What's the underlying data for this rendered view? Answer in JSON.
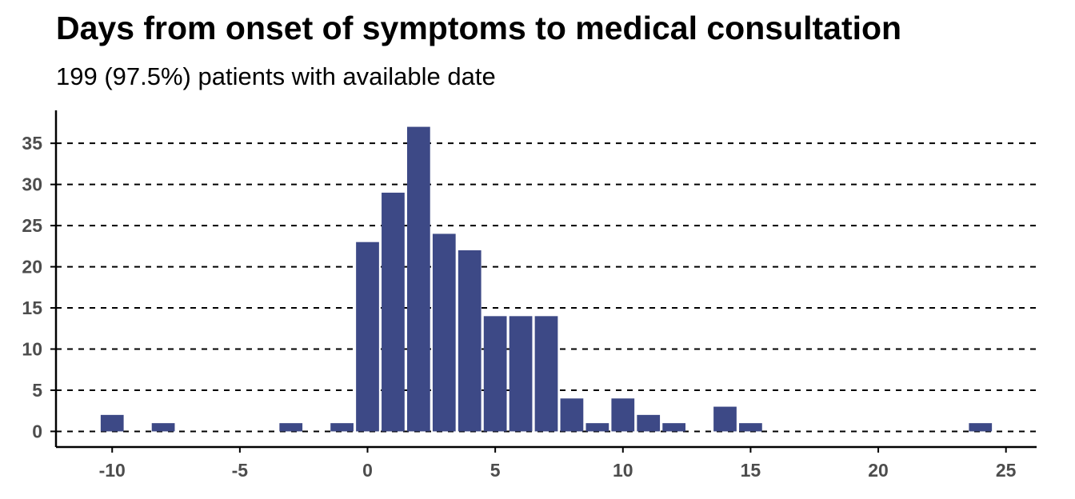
{
  "title": "Days from onset of symptoms to medical consultation",
  "subtitle": "199 (97.5%) patients with available date",
  "colors": {
    "bar": "#3d4986",
    "grid": "#000000",
    "axis": "#000000",
    "tick_text": "#4d4d4d"
  },
  "chart_data": {
    "type": "bar",
    "title": "Days from onset of symptoms to medical consultation",
    "subtitle": "199 (97.5%) patients with available date",
    "xlabel": "",
    "ylabel": "",
    "x": [
      -10,
      -8,
      -3,
      -1,
      0,
      1,
      2,
      3,
      4,
      5,
      6,
      7,
      8,
      9,
      10,
      11,
      12,
      14,
      15,
      24
    ],
    "values": [
      2,
      1,
      1,
      1,
      23,
      29,
      37,
      24,
      22,
      14,
      14,
      14,
      4,
      1,
      4,
      2,
      1,
      3,
      1,
      1
    ],
    "xlim": [
      -12.2,
      26.2
    ],
    "ylim": [
      -1.9,
      39
    ],
    "xticks": [
      -10,
      -5,
      0,
      5,
      10,
      15,
      20,
      25
    ],
    "yticks": [
      0,
      5,
      10,
      15,
      20,
      25,
      30,
      35
    ],
    "xtick_labels": [
      "-10",
      "-5",
      "0",
      "5",
      "10",
      "15",
      "20",
      "25"
    ],
    "ytick_labels": [
      "0",
      "5",
      "10",
      "15",
      "20",
      "25",
      "30",
      "35"
    ],
    "grid": "horizontal dashed",
    "legend": "none"
  }
}
